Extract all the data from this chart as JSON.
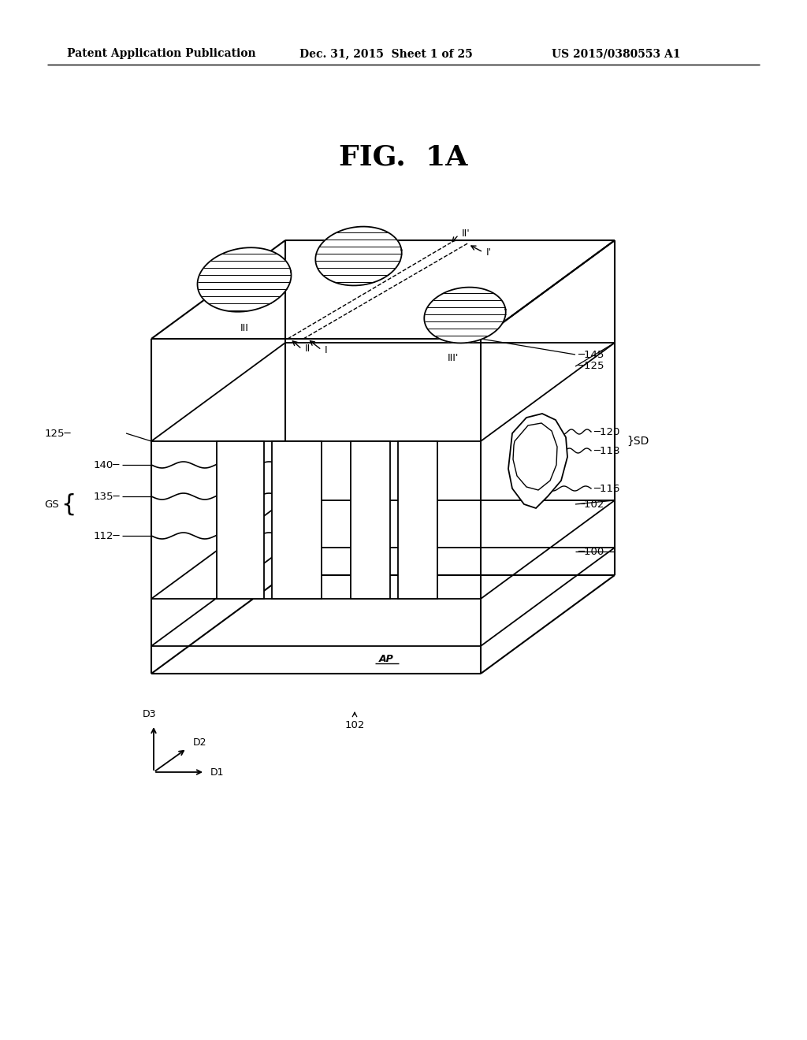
{
  "bg_color": "#ffffff",
  "line_color": "#000000",
  "header_left": "Patent Application Publication",
  "header_mid": "Dec. 31, 2015  Sheet 1 of 25",
  "header_right": "US 2015/0380553 A1",
  "fig_label": "FIG.  1A"
}
